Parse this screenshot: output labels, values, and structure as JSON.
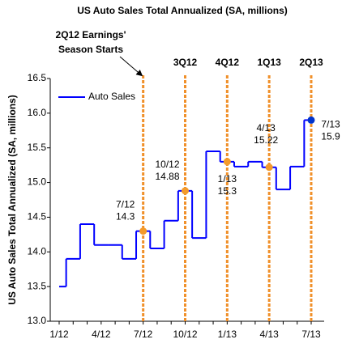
{
  "chart_data": {
    "type": "step-line",
    "title": "US Auto Sales Total Annualized (SA, millions)",
    "y_label": "US Auto Sales Total Annualized (SA, millions)",
    "categories": [
      "1/12",
      null,
      null,
      "4/12",
      null,
      null,
      "7/12",
      null,
      null,
      "10/12",
      null,
      null,
      "1/13",
      null,
      null,
      "4/13",
      null,
      null,
      "7/13"
    ],
    "series": [
      {
        "name": "Auto Sales",
        "color": "#0000ff",
        "values": [
          13.5,
          13.9,
          14.4,
          14.1,
          14.1,
          13.9,
          14.3,
          14.05,
          14.45,
          14.88,
          14.2,
          15.45,
          15.3,
          15.23,
          15.3,
          15.22,
          14.9,
          15.23,
          15.9
        ],
        "value_labels": [
          null,
          null,
          null,
          null,
          null,
          null,
          "14.3",
          null,
          null,
          "14.88",
          null,
          null,
          "15.3",
          null,
          null,
          "15.22",
          null,
          null,
          "15.9"
        ],
        "marker_colors": [
          null,
          null,
          null,
          null,
          null,
          null,
          "#f39a2b",
          null,
          null,
          "#f39a2b",
          null,
          null,
          "#f39a2b",
          null,
          null,
          "#f39a2b",
          null,
          null,
          "#0033cc"
        ]
      }
    ],
    "ylim": [
      13.0,
      16.5
    ],
    "yticks": [
      {
        "value": 13.0,
        "label": "13.0"
      },
      13.5,
      {
        "value": 14.0,
        "label": "14.0"
      },
      14.5,
      {
        "value": 15.0,
        "label": "15.0"
      },
      15.5,
      {
        "value": 16.0,
        "label": "16.0"
      },
      16.5
    ],
    "earnings_seasons": [
      {
        "category": "7/12",
        "label": [
          "2Q12 Earnings'",
          "Season Starts"
        ]
      },
      {
        "category": "10/12",
        "label": [
          "3Q12"
        ]
      },
      {
        "category": "1/13",
        "label": [
          "4Q12"
        ]
      },
      {
        "category": "4/13",
        "label": [
          "1Q13"
        ]
      },
      {
        "category": "7/13",
        "label": [
          "2Q13"
        ]
      }
    ],
    "earnings_color": "#f0902a",
    "legend": "top-left"
  }
}
